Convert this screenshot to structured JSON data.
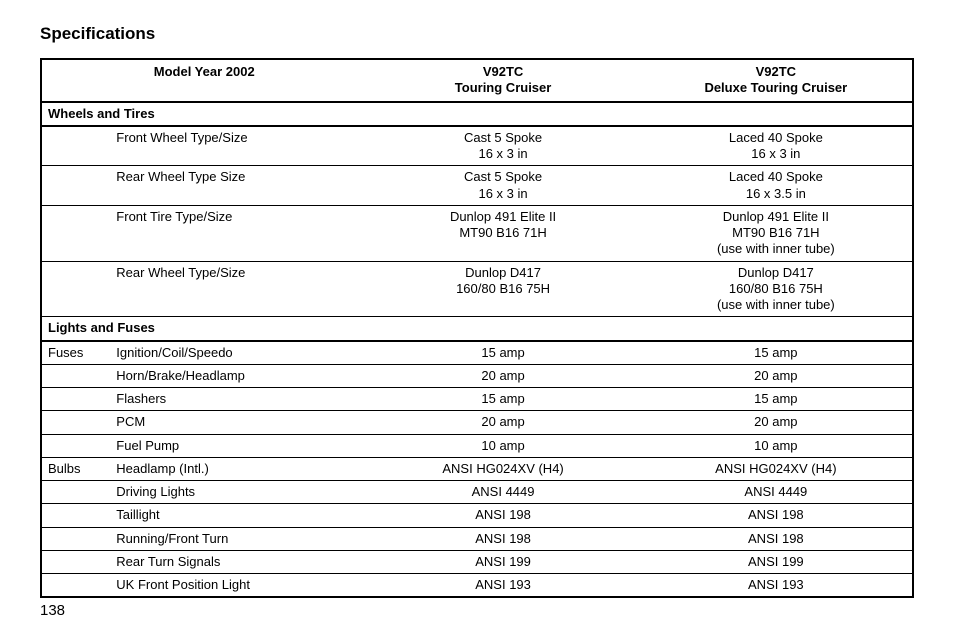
{
  "title": "Specifications",
  "page_number": "138",
  "header": {
    "model_year": "Model Year 2002",
    "col1_line1": "V92TC",
    "col1_line2": "Touring Cruiser",
    "col2_line1": "V92TC",
    "col2_line2": "Deluxe Touring Cruiser"
  },
  "sections": {
    "wheels": {
      "title": "Wheels and Tires",
      "rows": [
        {
          "label": "Front Wheel Type/Size",
          "v1": "Cast 5 Spoke\n16 x 3 in",
          "v2": "Laced 40 Spoke\n16 x 3 in"
        },
        {
          "label": "Rear Wheel Type Size",
          "v1": "Cast 5 Spoke\n16 x 3 in",
          "v2": "Laced 40 Spoke\n16 x 3.5 in"
        },
        {
          "label": "Front Tire Type/Size",
          "v1": "Dunlop 491 Elite II\nMT90 B16 71H",
          "v2": "Dunlop 491 Elite II\nMT90 B16 71H\n(use with inner tube)"
        },
        {
          "label": "Rear Wheel Type/Size",
          "v1": "Dunlop D417\n160/80 B16 75H",
          "v2": "Dunlop D417\n160/80 B16 75H\n(use with inner tube)"
        }
      ]
    },
    "lights": {
      "title": "Lights and Fuses",
      "fuses_label": "Fuses",
      "bulbs_label": "Bulbs",
      "fuses": [
        {
          "label": "Ignition/Coil/Speedo",
          "v1": "15 amp",
          "v2": "15 amp"
        },
        {
          "label": "Horn/Brake/Headlamp",
          "v1": "20 amp",
          "v2": "20 amp"
        },
        {
          "label": "Flashers",
          "v1": "15 amp",
          "v2": "15 amp"
        },
        {
          "label": "PCM",
          "v1": "20 amp",
          "v2": "20 amp"
        },
        {
          "label": "Fuel Pump",
          "v1": "10 amp",
          "v2": "10 amp"
        }
      ],
      "bulbs": [
        {
          "label": "Headlamp (Intl.)",
          "v1": "ANSI HG024XV (H4)",
          "v2": "ANSI HG024XV (H4)"
        },
        {
          "label": "Driving Lights",
          "v1": "ANSI 4449",
          "v2": "ANSI 4449"
        },
        {
          "label": "Taillight",
          "v1": "ANSI 198",
          "v2": "ANSI 198"
        },
        {
          "label": "Running/Front Turn",
          "v1": "ANSI 198",
          "v2": "ANSI 198"
        },
        {
          "label": "Rear Turn Signals",
          "v1": "ANSI 199",
          "v2": "ANSI 199"
        },
        {
          "label": "UK Front Position Light",
          "v1": "ANSI 193",
          "v2": "ANSI 193"
        }
      ]
    }
  }
}
